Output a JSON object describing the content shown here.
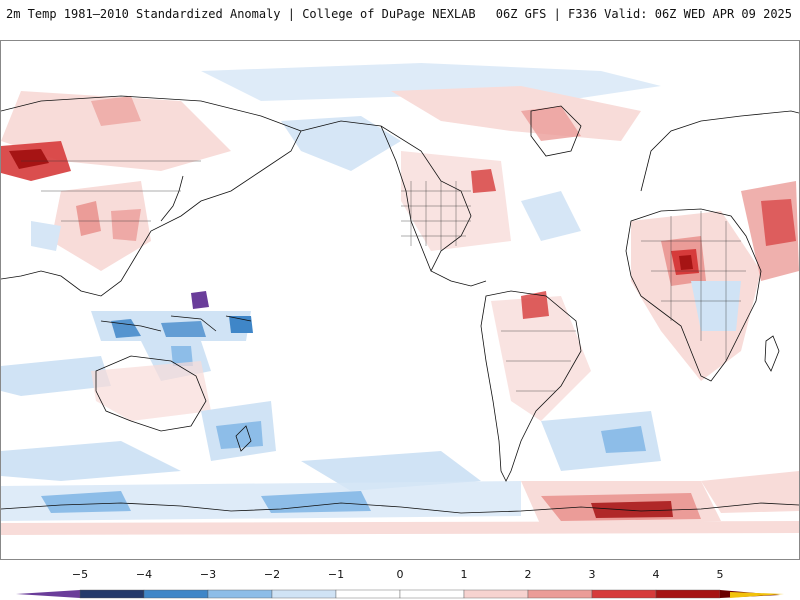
{
  "header": {
    "title_left": "2m Temp 1981–2010 Standardized Anomaly | College of DuPage NEXLAB",
    "title_right": "06Z GFS | F336 Valid: 06Z WED APR 09 2025"
  },
  "map": {
    "projection": "equirectangular-pacific-centered",
    "layers": [
      "coastlines",
      "country-borders",
      "us-state-borders",
      "anomaly-fill"
    ]
  },
  "colorbar": {
    "ticks": [
      "−5",
      "−4",
      "−3",
      "−2",
      "−1",
      "0",
      "1",
      "2",
      "3",
      "4",
      "5"
    ],
    "colors": {
      "neg_5": "#6a3d9a",
      "neg_4": "#23396b",
      "neg_3": "#3f86c8",
      "neg_2": "#8dbde8",
      "neg_1": "#d0e3f5",
      "zero_neg": "#ffffff",
      "zero_pos": "#ffffff",
      "pos_1": "#f7d3d0",
      "pos_2": "#eb9c98",
      "pos_3": "#d63b3b",
      "pos_4": "#a61414",
      "pos_5": "#6b0000",
      "over": "#f2c20b"
    }
  }
}
